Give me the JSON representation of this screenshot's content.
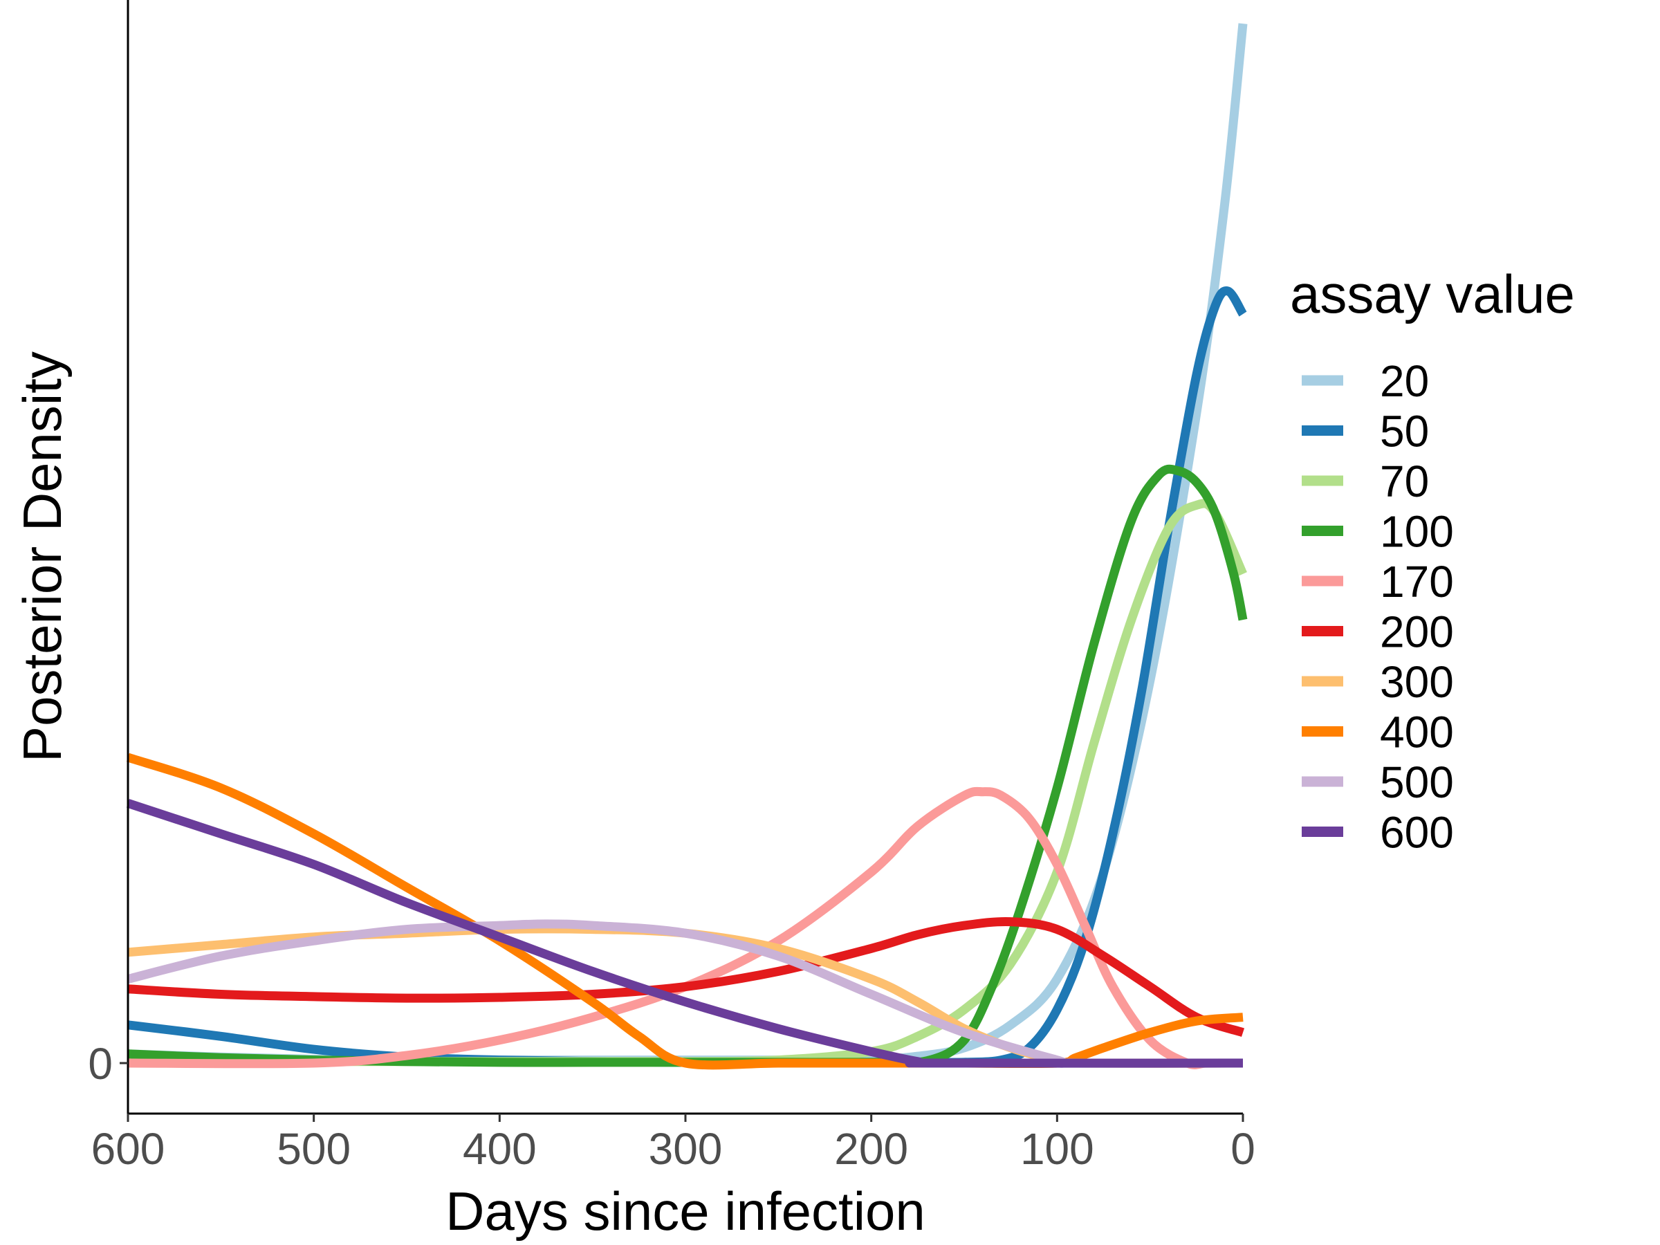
{
  "chart_data": {
    "type": "line",
    "xlabel": "Days since infection",
    "ylabel": "Posterior Density",
    "xlim": [
      600,
      0
    ],
    "x_reversed": true,
    "x_ticks": [
      600,
      500,
      400,
      300,
      200,
      100,
      0
    ],
    "y_ticks": [
      0
    ],
    "grid": false,
    "legend": {
      "title": "assay value",
      "position": "right"
    },
    "series": [
      {
        "name": "20",
        "color": "#a6cee3",
        "x": [
          600,
          550,
          500,
          450,
          400,
          350,
          300,
          250,
          200,
          175,
          150,
          125,
          100,
          75,
          50,
          25,
          10,
          0
        ],
        "y": [
          0.012,
          0.008,
          0.005,
          0.004,
          0.004,
          0.004,
          0.004,
          0.004,
          0.005,
          0.009,
          0.02,
          0.05,
          0.11,
          0.25,
          0.5,
          0.85,
          1.12,
          1.36
        ]
      },
      {
        "name": "50",
        "color": "#1f78b4",
        "x": [
          600,
          550,
          500,
          450,
          400,
          350,
          300,
          250,
          200,
          175,
          150,
          130,
          115,
          100,
          85,
          70,
          55,
          40,
          25,
          15,
          8,
          0
        ],
        "y": [
          0.05,
          0.035,
          0.018,
          0.008,
          0.004,
          0.002,
          0.001,
          0.001,
          0.001,
          0.001,
          0.001,
          0.004,
          0.02,
          0.07,
          0.16,
          0.3,
          0.48,
          0.7,
          0.9,
          0.99,
          1.01,
          0.98
        ]
      },
      {
        "name": "70",
        "color": "#b2df8a",
        "x": [
          600,
          550,
          500,
          450,
          400,
          350,
          300,
          250,
          200,
          175,
          150,
          125,
          100,
          80,
          60,
          40,
          25,
          15,
          0
        ],
        "y": [
          0.002,
          0.002,
          0.002,
          0.002,
          0.002,
          0.002,
          0.002,
          0.004,
          0.015,
          0.035,
          0.07,
          0.13,
          0.25,
          0.42,
          0.58,
          0.7,
          0.73,
          0.72,
          0.64
        ]
      },
      {
        "name": "100",
        "color": "#33a02c",
        "x": [
          600,
          550,
          500,
          450,
          400,
          350,
          300,
          250,
          200,
          170,
          150,
          135,
          120,
          100,
          80,
          60,
          45,
          35,
          25,
          15,
          5,
          0
        ],
        "y": [
          0.012,
          0.007,
          0.004,
          0.002,
          0.001,
          0.001,
          0.001,
          0.001,
          0.001,
          0.003,
          0.03,
          0.1,
          0.2,
          0.36,
          0.55,
          0.71,
          0.77,
          0.775,
          0.76,
          0.72,
          0.64,
          0.58
        ]
      },
      {
        "name": "170",
        "color": "#fb9a99",
        "x": [
          600,
          500,
          450,
          400,
          350,
          300,
          250,
          200,
          175,
          150,
          140,
          130,
          115,
          100,
          85,
          70,
          50,
          30,
          20,
          10,
          0
        ],
        "y": [
          0.0,
          0.0,
          0.01,
          0.03,
          0.06,
          0.1,
          0.16,
          0.25,
          0.31,
          0.35,
          0.355,
          0.35,
          0.32,
          0.26,
          0.18,
          0.1,
          0.03,
          0.0,
          0.0,
          0.0,
          0.0
        ]
      },
      {
        "name": "200",
        "color": "#e31a1c",
        "x": [
          600,
          550,
          500,
          450,
          400,
          350,
          300,
          250,
          200,
          175,
          150,
          125,
          100,
          75,
          50,
          25,
          0
        ],
        "y": [
          0.097,
          0.09,
          0.087,
          0.085,
          0.086,
          0.09,
          0.1,
          0.12,
          0.15,
          0.168,
          0.18,
          0.185,
          0.175,
          0.14,
          0.1,
          0.06,
          0.04
        ]
      },
      {
        "name": "300",
        "color": "#fdbf6f",
        "x": [
          600,
          550,
          500,
          450,
          400,
          350,
          300,
          250,
          200,
          175,
          150,
          125,
          100,
          90,
          0
        ],
        "y": [
          0.145,
          0.155,
          0.165,
          0.17,
          0.175,
          0.175,
          0.17,
          0.15,
          0.11,
          0.08,
          0.045,
          0.02,
          0.003,
          0.0,
          0.0
        ]
      },
      {
        "name": "400",
        "color": "#ff7f00",
        "x": [
          600,
          550,
          500,
          450,
          400,
          350,
          325,
          300,
          250,
          200,
          175,
          150,
          100,
          90,
          75,
          50,
          25,
          0
        ],
        "y": [
          0.4,
          0.36,
          0.3,
          0.23,
          0.16,
          0.08,
          0.035,
          0.0,
          0.0,
          0.0,
          0.0,
          0.0,
          0.0,
          0.007,
          0.02,
          0.04,
          0.055,
          0.06
        ]
      },
      {
        "name": "500",
        "color": "#cab2d6",
        "x": [
          600,
          550,
          500,
          450,
          400,
          375,
          350,
          300,
          250,
          200,
          150,
          100,
          90,
          0
        ],
        "y": [
          0.11,
          0.14,
          0.16,
          0.175,
          0.18,
          0.182,
          0.18,
          0.17,
          0.14,
          0.09,
          0.04,
          0.004,
          0.0,
          0.0
        ]
      },
      {
        "name": "600",
        "color": "#6a3d9a",
        "x": [
          600,
          550,
          500,
          450,
          400,
          350,
          300,
          250,
          200,
          175,
          165,
          0
        ],
        "y": [
          0.34,
          0.3,
          0.26,
          0.21,
          0.165,
          0.12,
          0.08,
          0.045,
          0.015,
          0.002,
          0.0,
          0.0
        ]
      }
    ]
  }
}
